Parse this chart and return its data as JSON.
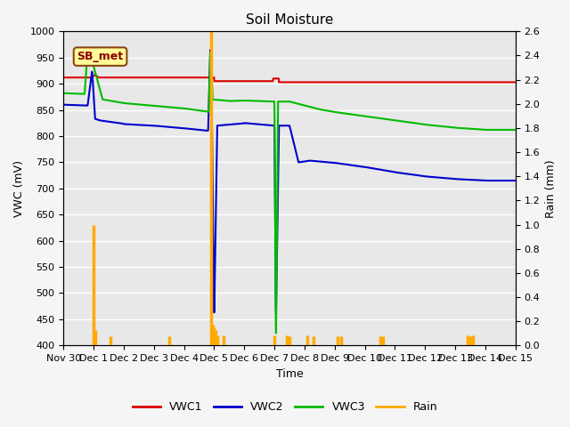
{
  "title": "Soil Moisture",
  "xlabel": "Time",
  "ylabel_left": "VWC (mV)",
  "ylabel_right": "Rain (mm)",
  "xlim": [
    0,
    15
  ],
  "ylim_left": [
    400,
    1000
  ],
  "ylim_right": [
    0.0,
    2.6
  ],
  "xtick_positions": [
    0,
    1,
    2,
    3,
    4,
    5,
    6,
    7,
    8,
    9,
    10,
    11,
    12,
    13,
    14,
    15
  ],
  "xtick_labels": [
    "Nov 30",
    "Dec 1",
    "Dec 2",
    "Dec 3",
    "Dec 4",
    "Dec 5",
    "Dec 6",
    "Dec 7",
    "Dec 8",
    "Dec 9",
    "Dec 10",
    "Dec 11",
    "Dec 12",
    "Dec 13",
    "Dec 14",
    "Dec 15"
  ],
  "ytick_left": [
    400,
    450,
    500,
    550,
    600,
    650,
    700,
    750,
    800,
    850,
    900,
    950,
    1000
  ],
  "ytick_right": [
    0.0,
    0.2,
    0.4,
    0.6,
    0.8,
    1.0,
    1.2,
    1.4,
    1.6,
    1.8,
    2.0,
    2.2,
    2.4,
    2.6
  ],
  "plot_bg": "#e8e8e8",
  "fig_bg": "#f5f5f5",
  "grid_color": "#ffffff",
  "vwc1_color": "#dd0000",
  "vwc2_color": "#0000cc",
  "vwc3_color": "#00bb00",
  "rain_color": "#ffaa00",
  "annotation_text": "SB_met",
  "annotation_bg": "#ffff99",
  "annotation_border": "#8b4513",
  "legend_labels": [
    "VWC1",
    "VWC2",
    "VWC3",
    "Rain"
  ],
  "legend_colors": [
    "#dd0000",
    "#0000cc",
    "#00bb00",
    "#ffaa00"
  ]
}
